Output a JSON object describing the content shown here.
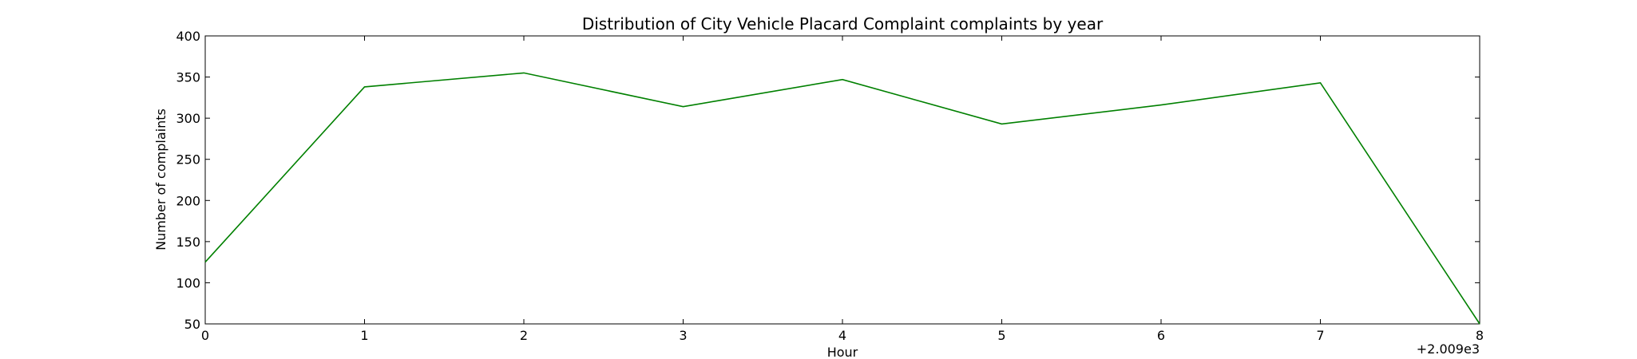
{
  "chart_data": {
    "type": "line",
    "title": "Distribution of  City Vehicle Placard Complaint complaints by year",
    "xlabel": "Hour",
    "ylabel": "Number of complaints",
    "x_offset_label": "+2.009e3",
    "xlim": [
      0,
      8
    ],
    "ylim": [
      50,
      400
    ],
    "x_ticks": [
      0,
      1,
      2,
      3,
      4,
      5,
      6,
      7,
      8
    ],
    "y_ticks": [
      50,
      100,
      150,
      200,
      250,
      300,
      350,
      400
    ],
    "grid": false,
    "line_color": "#008000",
    "series": [
      {
        "x": [
          0,
          1,
          2,
          3,
          4,
          5,
          6,
          7,
          8
        ],
        "values": [
          125,
          338,
          355,
          314,
          347,
          293,
          316,
          343,
          50
        ]
      }
    ]
  }
}
